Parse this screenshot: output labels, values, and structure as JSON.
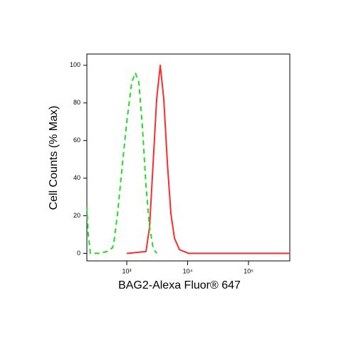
{
  "chart_data": {
    "type": "line",
    "xlabel": "BAG2-Alexa Fluor® 647",
    "ylabel": "Cell Counts (% Max)",
    "xscale": "log",
    "xlim": [
      221,
      476000
    ],
    "ylim": [
      -4,
      106
    ],
    "xticks": [
      {
        "value": 1000,
        "label": "10³"
      },
      {
        "value": 10000,
        "label": "10⁴"
      },
      {
        "value": 100000,
        "label": "10⁵"
      }
    ],
    "yticks": [
      0,
      20,
      40,
      60,
      80,
      100
    ],
    "series": [
      {
        "color": "#ff2a2a",
        "dash": false,
        "x": [
          1000,
          1055,
          2070,
          2366,
          2710,
          3097,
          3548,
          4055,
          4645,
          5310,
          6080,
          7330,
          10400,
          26700,
          476000
        ],
        "values": [
          0,
          0,
          1,
          14,
          48,
          82,
          100,
          82,
          48,
          21,
          8,
          2,
          0,
          0,
          0
        ]
      },
      {
        "color": "#22dd22",
        "dash": true,
        "x": [
          221,
          233,
          253,
          360,
          470,
          584,
          615,
          705,
          851,
          1000,
          1207,
          1381,
          1580,
          1808,
          2070,
          2366,
          2710,
          3097
        ],
        "values": [
          25,
          10,
          0,
          0,
          1,
          3,
          6,
          21,
          48,
          70,
          91,
          96,
          91,
          67,
          36,
          14,
          3,
          0
        ]
      }
    ]
  }
}
